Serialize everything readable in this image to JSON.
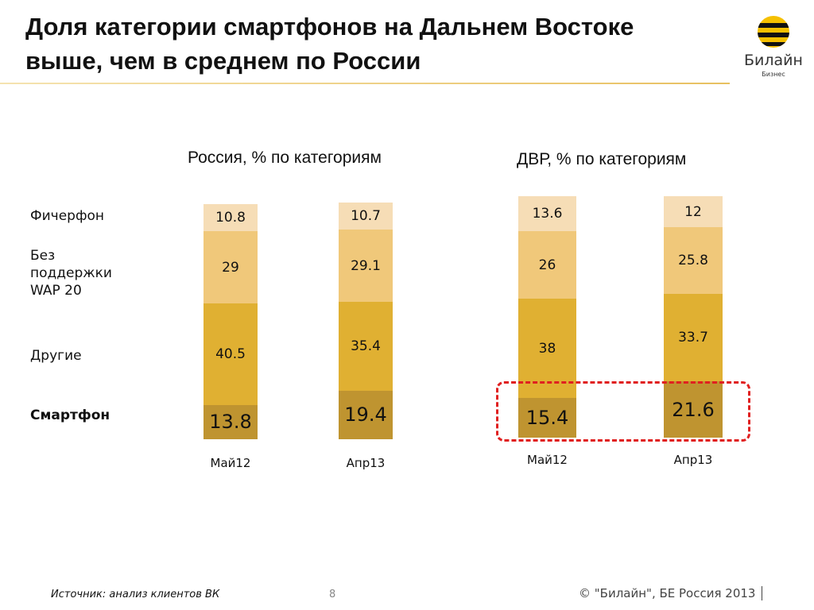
{
  "title": "Доля категории смартфонов на Дальнем Востоке выше, чем в среднем по России",
  "logo": {
    "name": "Билайн",
    "sub": "Бизнес"
  },
  "categories": [
    "Фичерфон",
    "Без поддержки WAP 20",
    "Другие",
    "Смартфон"
  ],
  "chart_data": [
    {
      "type": "bar",
      "stacked": true,
      "title": "Россия, % по категориям",
      "categories": [
        "Май12",
        "Апр13"
      ],
      "series": [
        {
          "name": "Смартфон",
          "values": [
            13.8,
            19.4
          ]
        },
        {
          "name": "Другие",
          "values": [
            40.5,
            35.4
          ]
        },
        {
          "name": "Без поддержки WAP 20",
          "values": [
            29,
            29.1
          ]
        },
        {
          "name": "Фичерфон",
          "values": [
            10.8,
            10.7
          ]
        }
      ]
    },
    {
      "type": "bar",
      "stacked": true,
      "title": "ДВР, % по категориям",
      "categories": [
        "Май12",
        "Апр13"
      ],
      "series": [
        {
          "name": "Смартфон",
          "values": [
            15.4,
            21.6
          ]
        },
        {
          "name": "Другие",
          "values": [
            38,
            33.7
          ]
        },
        {
          "name": "Без поддержки WAP 20",
          "values": [
            26,
            25.8
          ]
        },
        {
          "name": "Фичерфон",
          "values": [
            13.6,
            12
          ]
        }
      ]
    }
  ],
  "colors": [
    "#bf9430",
    "#e0b032",
    "#f0c87a",
    "#f6ddb6"
  ],
  "highlight_color": "#e02020",
  "footer": {
    "source": "Источник: анализ клиентов ВК",
    "page": "8",
    "copyright": "© \"Билайн\", БЕ Россия 2013"
  }
}
